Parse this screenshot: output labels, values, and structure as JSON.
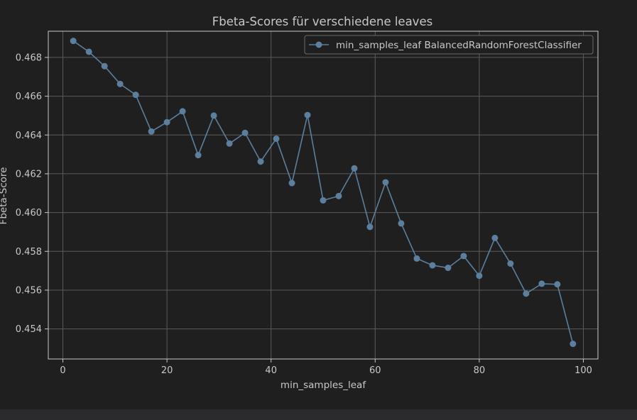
{
  "colors": {
    "background": "#1f1f1f",
    "axes_edge": "#c8c8c8",
    "grid": "#5a5a5a",
    "text": "#c8c8c8",
    "series": "#5b7f9c",
    "legend_bg": "#1f1f1f",
    "bottom_bar": "#2b2b2e"
  },
  "chart_data": {
    "type": "line",
    "title": "Fbeta-Scores für verschiedene leaves",
    "xlabel": "min_samples_leaf",
    "ylabel": "Fbeta-Score",
    "xlim": [
      -2.8,
      102.8
    ],
    "ylim": [
      0.45245,
      0.46935
    ],
    "xticks": [
      0,
      20,
      40,
      60,
      80,
      100
    ],
    "xtick_labels": [
      "0",
      "20",
      "40",
      "60",
      "80",
      "100"
    ],
    "yticks": [
      0.454,
      0.456,
      0.458,
      0.46,
      0.462,
      0.464,
      0.466,
      0.468
    ],
    "ytick_labels": [
      "0.454",
      "0.456",
      "0.458",
      "0.460",
      "0.462",
      "0.464",
      "0.466",
      "0.468"
    ],
    "grid": true,
    "legend_position": "top-right",
    "series": [
      {
        "name": "min_samples_leaf BalancedRandomForestClassifier",
        "marker": "circle",
        "x": [
          2,
          5,
          8,
          11,
          14,
          17,
          20,
          23,
          26,
          29,
          32,
          35,
          38,
          41,
          44,
          47,
          50,
          53,
          56,
          59,
          62,
          65,
          68,
          71,
          74,
          77,
          80,
          83,
          86,
          89,
          92,
          95,
          98
        ],
        "y": [
          0.46885,
          0.46829,
          0.46755,
          0.46663,
          0.46607,
          0.46418,
          0.46466,
          0.46522,
          0.46296,
          0.465,
          0.46356,
          0.46411,
          0.46263,
          0.46381,
          0.46152,
          0.46503,
          0.46063,
          0.46085,
          0.46228,
          0.45926,
          0.46156,
          0.45944,
          0.45763,
          0.45728,
          0.45715,
          0.45776,
          0.45674,
          0.45869,
          0.45737,
          0.45582,
          0.45633,
          0.4563,
          0.45323
        ]
      }
    ]
  }
}
